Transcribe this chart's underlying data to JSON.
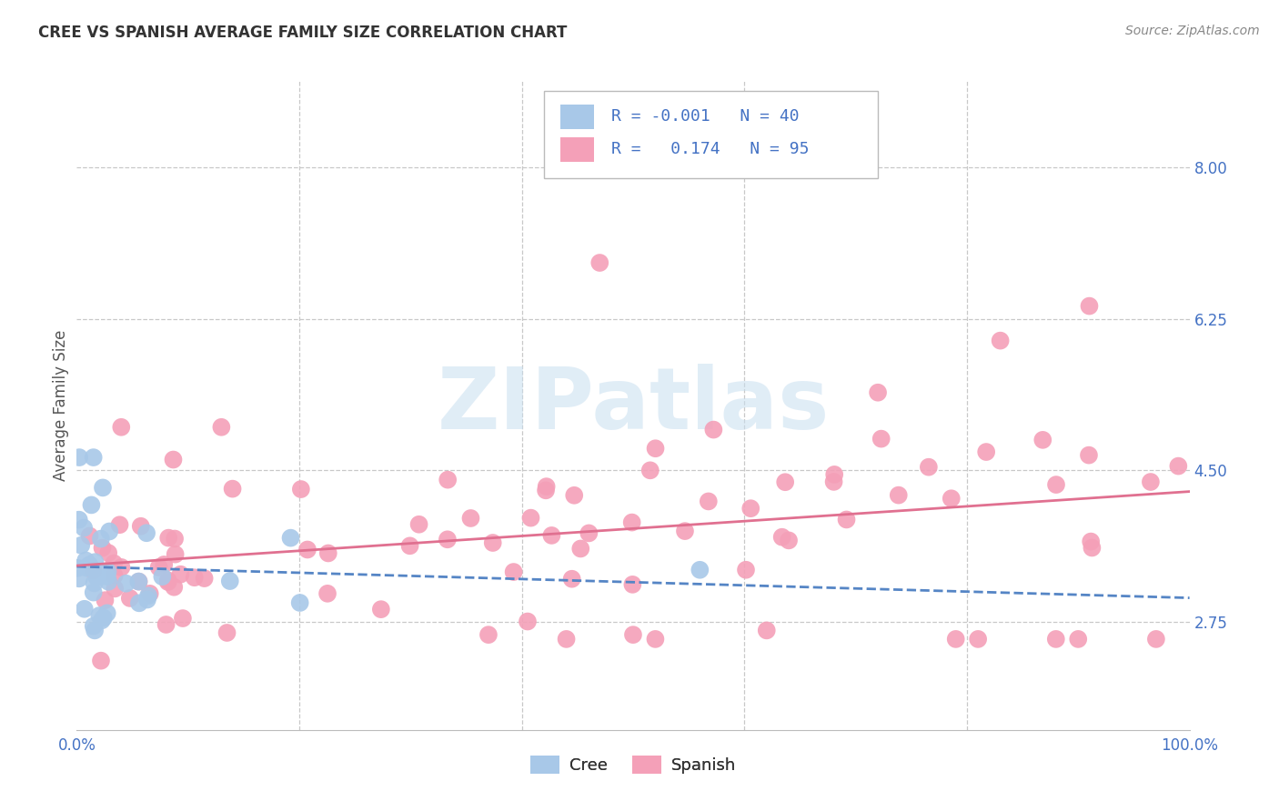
{
  "title": "CREE VS SPANISH AVERAGE FAMILY SIZE CORRELATION CHART",
  "source": "Source: ZipAtlas.com",
  "ylabel": "Average Family Size",
  "right_yticks": [
    2.75,
    4.5,
    6.25,
    8.0
  ],
  "watermark": "ZIPatlas",
  "cree_color": "#a8c8e8",
  "spanish_color": "#f4a0b8",
  "cree_line_color": "#5585c5",
  "spanish_line_color": "#e07090",
  "background_color": "#ffffff",
  "grid_color": "#c8c8c8",
  "right_tick_color": "#4472c4",
  "xlim": [
    0,
    100
  ],
  "ylim": [
    1.5,
    9.0
  ],
  "cree_R": -0.001,
  "cree_N": 40,
  "spanish_R": 0.174,
  "spanish_N": 95
}
